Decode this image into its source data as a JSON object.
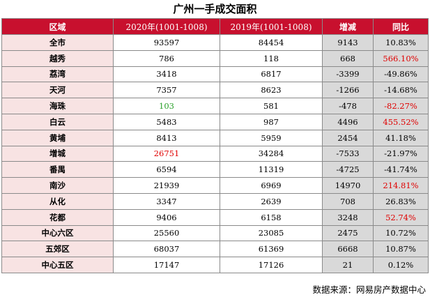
{
  "title": "广州一手成交面积",
  "headers": [
    "区域",
    "2020年(1001-1008)",
    "2019年(1001-1008)",
    "增减",
    "同比"
  ],
  "rows": [
    {
      "region": "全市",
      "y2020": "93597",
      "y2019": "84454",
      "diff": "9143",
      "ratio": "10.83%"
    },
    {
      "region": "越秀",
      "y2020": "786",
      "y2019": "118",
      "diff": "668",
      "ratio": "566.10%"
    },
    {
      "region": "荔湾",
      "y2020": "3418",
      "y2019": "6817",
      "diff": "-3399",
      "ratio": "-49.86%"
    },
    {
      "region": "天河",
      "y2020": "7357",
      "y2019": "8623",
      "diff": "-1266",
      "ratio": "-14.68%"
    },
    {
      "region": "海珠",
      "y2020": "103",
      "y2019": "581",
      "diff": "-478",
      "ratio": "-82.27%"
    },
    {
      "region": "白云",
      "y2020": "5483",
      "y2019": "987",
      "diff": "4496",
      "ratio": "455.52%"
    },
    {
      "region": "黄埔",
      "y2020": "8413",
      "y2019": "5959",
      "diff": "2454",
      "ratio": "41.18%"
    },
    {
      "region": "增城",
      "y2020": "26751",
      "y2019": "34284",
      "diff": "-7533",
      "ratio": "-21.97%"
    },
    {
      "region": "番禺",
      "y2020": "6594",
      "y2019": "11319",
      "diff": "-4725",
      "ratio": "-41.74%"
    },
    {
      "region": "南沙",
      "y2020": "21939",
      "y2019": "6969",
      "diff": "14970",
      "ratio": "214.81%"
    },
    {
      "region": "从化",
      "y2020": "3347",
      "y2019": "2639",
      "diff": "708",
      "ratio": "26.83%"
    },
    {
      "region": "花都",
      "y2020": "9406",
      "y2019": "6158",
      "diff": "3248",
      "ratio": "52.74%"
    },
    {
      "region": "中心六区",
      "y2020": "25560",
      "y2019": "23085",
      "diff": "2475",
      "ratio": "10.72%"
    },
    {
      "region": "五郊区",
      "y2020": "68037",
      "y2019": "61369",
      "diff": "6668",
      "ratio": "10.87%"
    },
    {
      "region": "中心五区",
      "y2020": "17147",
      "y2019": "17126",
      "diff": "21",
      "ratio": "0.12%"
    }
  ],
  "colors": {
    "header_bg": "#c8102e",
    "region_bg": "#f8e3e3",
    "diff_bg": "#d9d9d9",
    "highlight_red": "#e00000",
    "highlight_green": "#2aa12a"
  },
  "highlights": {
    "y2020_red_rows": [
      7
    ],
    "y2020_green_rows": [
      4
    ],
    "ratio_red_rows": [
      1,
      4,
      5,
      9,
      11
    ]
  },
  "source": "数据来源：网易房产数据中心"
}
